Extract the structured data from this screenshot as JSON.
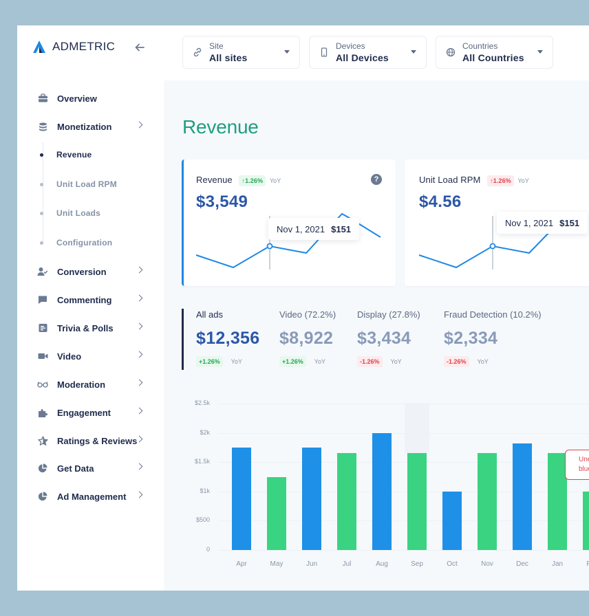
{
  "brand": {
    "name": "ADMETRIC",
    "accent": "#1e88e5",
    "green": "#1f9e82"
  },
  "filters": [
    {
      "label": "Site",
      "value": "All sites",
      "icon": "link-icon"
    },
    {
      "label": "Devices",
      "value": "All Devices",
      "icon": "phone-icon"
    },
    {
      "label": "Countries",
      "value": "All Countries",
      "icon": "globe-icon"
    }
  ],
  "sidebar": {
    "items": [
      {
        "label": "Overview",
        "icon": "briefcase-icon",
        "chevron": false
      },
      {
        "label": "Monetization",
        "icon": "coins-icon",
        "chevron": true
      },
      {
        "label": "Conversion",
        "icon": "user-check-icon",
        "chevron": true
      },
      {
        "label": "Commenting",
        "icon": "chat-icon",
        "chevron": true
      },
      {
        "label": "Trivia & Polls",
        "icon": "poll-icon",
        "chevron": true
      },
      {
        "label": "Video",
        "icon": "video-icon",
        "chevron": true
      },
      {
        "label": "Moderation",
        "icon": "glasses-icon",
        "chevron": true
      },
      {
        "label": "Engagement",
        "icon": "puzzle-icon",
        "chevron": true
      },
      {
        "label": "Ratings & Reviews",
        "icon": "star-icon",
        "chevron": true
      },
      {
        "label": "Get Data",
        "icon": "pie-icon",
        "chevron": true
      },
      {
        "label": "Ad Management",
        "icon": "pie-icon",
        "chevron": true
      }
    ],
    "subitems": [
      {
        "label": "Revenue",
        "active": true
      },
      {
        "label": "Unit Load RPM",
        "active": false
      },
      {
        "label": "Unit Loads",
        "active": false
      },
      {
        "label": "Configuration",
        "active": false
      }
    ]
  },
  "page": {
    "title": "Revenue"
  },
  "cards": [
    {
      "label": "Revenue",
      "change": "↑1.26%",
      "direction": "up",
      "yoy": "YoY",
      "value": "$3,549",
      "tooltip_date": "Nov 1, 2021",
      "tooltip_value": "$151",
      "help": "?"
    },
    {
      "label": "Unit Load RPM",
      "change": "↑1.26%",
      "direction": "down",
      "yoy": "YoY",
      "value": "$4.56",
      "tooltip_date": "Nov 1, 2021",
      "tooltip_value": "$151"
    }
  ],
  "segments": [
    {
      "name": "All ads",
      "value": "$12,356",
      "change": "+1.26%",
      "direction": "up",
      "yoy": "YoY",
      "active": true
    },
    {
      "name": "Video (72.2%)",
      "value": "$8,922",
      "change": "+1.26%",
      "direction": "up",
      "yoy": "YoY",
      "active": false
    },
    {
      "name": "Display (27.8%)",
      "value": "$3,434",
      "change": "-1.26%",
      "direction": "down",
      "yoy": "YoY",
      "active": false
    },
    {
      "name": "Fraud Detection (10.2%)",
      "value": "$2,334",
      "change": "-1.26%",
      "direction": "down",
      "yoy": "YoY",
      "active": false
    }
  ],
  "note": {
    "line1": "Une",
    "line2": "blue"
  },
  "chart_data": {
    "type": "bar",
    "categories": [
      "Apr",
      "May",
      "Jun",
      "Jul",
      "Aug",
      "Sep",
      "Oct",
      "Nov",
      "Dec",
      "Jan",
      "Feb"
    ],
    "values": [
      1750,
      1250,
      1750,
      1650,
      2000,
      1650,
      1000,
      1650,
      1820,
      1650,
      1000
    ],
    "bar_colors": [
      "#1e90e8",
      "#3ad381",
      "#1e90e8",
      "#3ad381",
      "#1e90e8",
      "#3ad381",
      "#1e90e8",
      "#3ad381",
      "#1e90e8",
      "#3ad381",
      "#3ad381"
    ],
    "highlight_category": "Sep",
    "yticks": [
      "0",
      "$500",
      "$1k",
      "$1.5k",
      "$2k",
      "$2.5k"
    ],
    "ylim": [
      0,
      2500
    ],
    "grid": true
  }
}
